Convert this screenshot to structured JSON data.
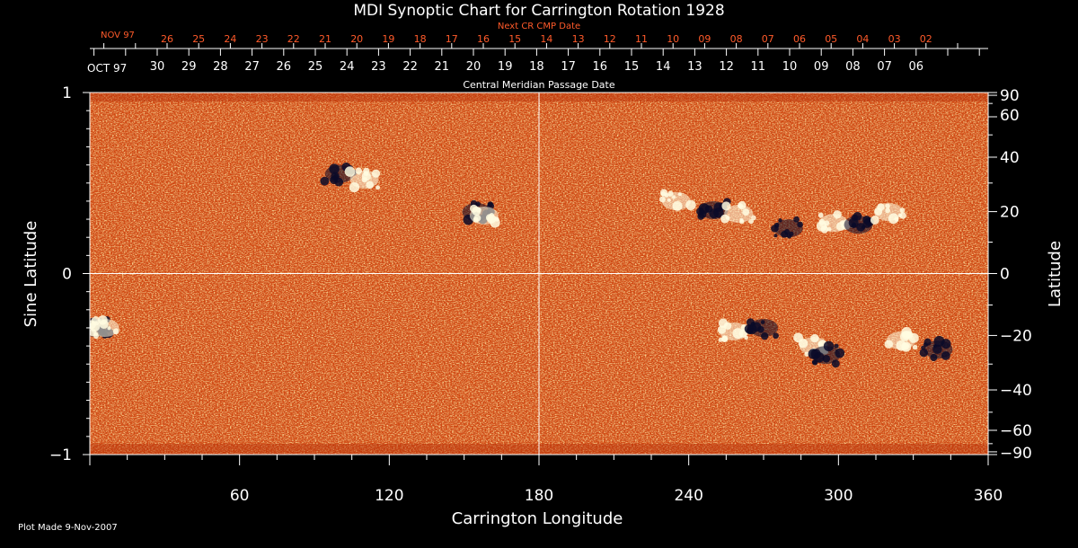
{
  "chart_data": {
    "type": "heatmap",
    "title": "MDI Synoptic Chart for Carrington Rotation 1928",
    "xlabel": "Carrington Longitude",
    "ylabel_left": "Sine Latitude",
    "ylabel_right": "Latitude",
    "xlim": [
      0,
      360
    ],
    "ylim_sine": [
      -1,
      1
    ],
    "x_ticks": [
      60,
      120,
      180,
      240,
      300,
      360
    ],
    "y_left_ticks": [
      {
        "value": 1,
        "label": "1"
      },
      {
        "value": 0,
        "label": "0"
      },
      {
        "value": -1,
        "label": "−1"
      }
    ],
    "y_right_ticks": [
      90,
      60,
      40,
      20,
      0,
      -20,
      -40,
      -60,
      -90
    ],
    "central_meridian_axis": {
      "label": "Central Meridian Passage Date",
      "month_label": "OCT 97",
      "days": [
        "30",
        "29",
        "28",
        "27",
        "26",
        "25",
        "24",
        "23",
        "22",
        "21",
        "20",
        "19",
        "18",
        "17",
        "16",
        "15",
        "14",
        "13",
        "12",
        "11",
        "10",
        "09",
        "08",
        "07",
        "06"
      ]
    },
    "next_rotation_axis": {
      "label": "Next CR CMP Date",
      "month_label": "NOV 97",
      "days": [
        "26",
        "25",
        "24",
        "23",
        "22",
        "21",
        "20",
        "19",
        "18",
        "17",
        "16",
        "15",
        "14",
        "13",
        "12",
        "11",
        "10",
        "09",
        "08",
        "07",
        "06",
        "05",
        "04",
        "03",
        "02"
      ]
    },
    "colors": {
      "background_field": "#d84a10",
      "positive": "#fffbe0",
      "negative": "#0a0a28",
      "axis": "#ffffff",
      "next_cr": "#ff5a2a"
    },
    "regions": [
      {
        "lon": 100,
        "sinlat": 0.55,
        "polarity": "negative"
      },
      {
        "lon": 110,
        "sinlat": 0.52,
        "polarity": "positive"
      },
      {
        "lon": 155,
        "sinlat": 0.34,
        "polarity": "negative"
      },
      {
        "lon": 158,
        "sinlat": 0.32,
        "polarity": "positive"
      },
      {
        "lon": 235,
        "sinlat": 0.4,
        "polarity": "positive"
      },
      {
        "lon": 250,
        "sinlat": 0.35,
        "polarity": "negative"
      },
      {
        "lon": 260,
        "sinlat": 0.33,
        "polarity": "positive"
      },
      {
        "lon": 280,
        "sinlat": 0.25,
        "polarity": "negative"
      },
      {
        "lon": 298,
        "sinlat": 0.28,
        "polarity": "positive"
      },
      {
        "lon": 308,
        "sinlat": 0.27,
        "polarity": "negative"
      },
      {
        "lon": 320,
        "sinlat": 0.34,
        "polarity": "positive"
      },
      {
        "lon": 258,
        "sinlat": -0.32,
        "polarity": "positive"
      },
      {
        "lon": 270,
        "sinlat": -0.3,
        "polarity": "negative"
      },
      {
        "lon": 290,
        "sinlat": -0.4,
        "polarity": "positive"
      },
      {
        "lon": 295,
        "sinlat": -0.45,
        "polarity": "negative"
      },
      {
        "lon": 325,
        "sinlat": -0.37,
        "polarity": "positive"
      },
      {
        "lon": 340,
        "sinlat": -0.42,
        "polarity": "negative"
      },
      {
        "lon": 2,
        "sinlat": -0.3,
        "polarity": "negative"
      },
      {
        "lon": 6,
        "sinlat": -0.3,
        "polarity": "positive"
      }
    ]
  },
  "footer": {
    "plot_made": "Plot Made  9-Nov-2007"
  }
}
